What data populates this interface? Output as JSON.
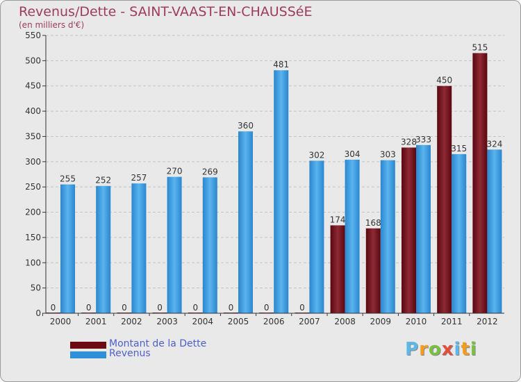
{
  "chart_data": {
    "type": "bar",
    "title": "Revenus/Dette - SAINT-VAAST-EN-CHAUSSéE",
    "subtitle": "(en milliers d'€)",
    "xlabel": "",
    "ylabel": "",
    "ylim": [
      0,
      550
    ],
    "yticks": [
      0,
      50,
      100,
      150,
      200,
      250,
      300,
      350,
      400,
      450,
      500,
      550
    ],
    "ytick_labels": [
      "0",
      "50",
      "100",
      "150",
      "200",
      "250",
      "300",
      "350",
      "400",
      "450",
      "500",
      "550"
    ],
    "categories": [
      "2000",
      "2001",
      "2002",
      "2003",
      "2004",
      "2005",
      "2006",
      "2007",
      "2008",
      "2009",
      "2010",
      "2011",
      "2012"
    ],
    "series": [
      {
        "name": "Montant de la Dette",
        "color": "#6b0a12",
        "values": [
          0,
          0,
          0,
          0,
          0,
          0,
          0,
          0,
          174,
          168,
          328,
          450,
          515
        ],
        "labels": [
          "0",
          "0",
          "0",
          "0",
          "0",
          "0",
          "0",
          "0",
          "174",
          "168",
          "328",
          "450",
          "515"
        ]
      },
      {
        "name": "Revenus",
        "color": "#2f8fd8",
        "values": [
          255,
          252,
          257,
          270,
          269,
          360,
          481,
          302,
          304,
          303,
          333,
          315,
          324
        ],
        "labels": [
          "255",
          "252",
          "257",
          "270",
          "269",
          "360",
          "481",
          "302",
          "304",
          "303",
          "333",
          "315",
          "324"
        ]
      }
    ],
    "grid": true,
    "legend_position": "bottom-left"
  },
  "logo": {
    "letters": [
      {
        "ch": "P",
        "color": "#5bb8e8"
      },
      {
        "ch": "r",
        "color": "#f39c1f"
      },
      {
        "ch": "o",
        "color": "#7ac143"
      },
      {
        "ch": "x",
        "color": "#e84c3d"
      },
      {
        "ch": "i",
        "color": "#5bb8e8"
      },
      {
        "ch": "t",
        "color": "#f39c1f"
      },
      {
        "ch": "i",
        "color": "#7ac143"
      }
    ]
  }
}
